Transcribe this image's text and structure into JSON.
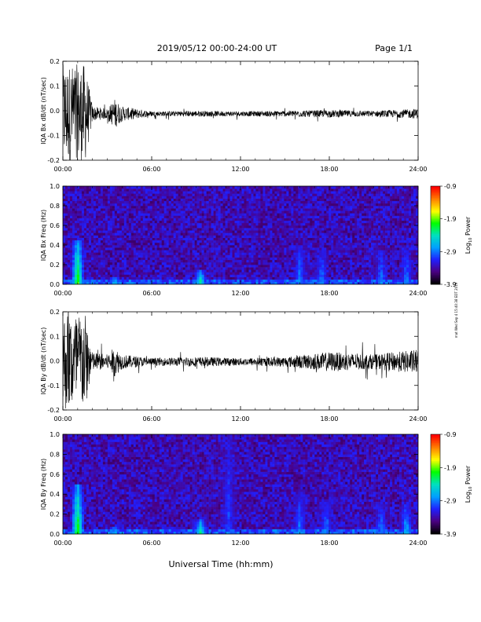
{
  "header": {
    "title": "2019/05/12  00:00-24:00 UT",
    "page": "Page 1/1"
  },
  "footer": {
    "xlabel": "Universal Time (hh:mm)"
  },
  "side_note": "mat Wed Sep 4 15:40:38 EDT 2019",
  "colorbar": {
    "label": "Log",
    "subscript": "10",
    "label_suffix": " Power",
    "range": [
      -3.9,
      -0.9
    ],
    "ticks": [
      "-0.9",
      "-1.9",
      "-2.9",
      "-3.9"
    ],
    "colors": [
      "#000000",
      "#4b0082",
      "#2020ff",
      "#00a0ff",
      "#00e0c0",
      "#00ff00",
      "#ffff00",
      "#ff8000",
      "#ff0000"
    ]
  },
  "chart_data": [
    {
      "type": "line",
      "title": "",
      "ylabel": "IQA Bx dB/dt (nT/sec)",
      "xlabel": "",
      "xlim_hours": [
        0,
        24
      ],
      "ylim": [
        -0.2,
        0.2
      ],
      "x_ticks": [
        "00:00",
        "06:00",
        "12:00",
        "18:00",
        "24:00"
      ],
      "y_ticks": [
        "0.2",
        "0.1",
        "0.0",
        "-0.1",
        "-0.2"
      ],
      "series": [
        {
          "x": [
            0,
            0.5,
            1.0,
            1.5,
            2.0,
            3.0,
            3.5,
            4.0,
            6,
            9,
            12,
            15,
            18,
            21,
            24
          ],
          "amplitude": [
            0.2,
            0.2,
            0.2,
            0.2,
            0.03,
            0.02,
            0.06,
            0.03,
            0.01,
            0.012,
            0.01,
            0.012,
            0.015,
            0.012,
            0.02
          ]
        }
      ]
    },
    {
      "type": "heatmap",
      "title": "",
      "ylabel": "IQA Bx Freq (Hz)",
      "xlim_hours": [
        0,
        24
      ],
      "ylim": [
        0.0,
        1.0
      ],
      "x_ticks": [
        "00:00",
        "06:00",
        "12:00",
        "18:00",
        "24:00"
      ],
      "y_ticks": [
        "1.0",
        "0.8",
        "0.6",
        "0.4",
        "0.2",
        "0.0"
      ],
      "enhancements": [
        {
          "t": 1.0,
          "f_max": 0.45,
          "level": -1.9
        },
        {
          "t": 3.5,
          "f_max": 0.08,
          "level": -2.6
        },
        {
          "t": 9.3,
          "f_max": 0.15,
          "level": -2.3
        },
        {
          "t": 16.0,
          "f_max": 0.4,
          "level": -2.9
        },
        {
          "t": 17.5,
          "f_max": 0.35,
          "level": -2.9
        },
        {
          "t": 21.5,
          "f_max": 0.35,
          "level": -2.9
        },
        {
          "t": 23.2,
          "f_max": 0.35,
          "level": -2.9
        }
      ]
    },
    {
      "type": "line",
      "title": "",
      "ylabel": "IQA By dB/dt (nT/sec)",
      "xlabel": "",
      "xlim_hours": [
        0,
        24
      ],
      "ylim": [
        -0.2,
        0.2
      ],
      "x_ticks": [
        "00:00",
        "06:00",
        "12:00",
        "18:00",
        "24:00"
      ],
      "y_ticks": [
        "0.2",
        "0.1",
        "0.0",
        "-0.1",
        "-0.2"
      ],
      "series": [
        {
          "x": [
            0,
            0.5,
            1.0,
            1.5,
            2.0,
            3.0,
            3.5,
            4.0,
            6,
            9,
            12,
            15,
            18,
            21,
            24
          ],
          "amplitude": [
            0.2,
            0.2,
            0.2,
            0.2,
            0.04,
            0.03,
            0.06,
            0.03,
            0.015,
            0.02,
            0.015,
            0.02,
            0.04,
            0.03,
            0.05
          ]
        }
      ]
    },
    {
      "type": "heatmap",
      "title": "",
      "ylabel": "IQA By Freq (Hz)",
      "xlim_hours": [
        0,
        24
      ],
      "ylim": [
        0.0,
        1.0
      ],
      "x_ticks": [
        "00:00",
        "06:00",
        "12:00",
        "18:00",
        "24:00"
      ],
      "y_ticks": [
        "1.0",
        "0.8",
        "0.6",
        "0.4",
        "0.2",
        "0.0"
      ],
      "enhancements": [
        {
          "t": 1.0,
          "f_max": 0.5,
          "level": -1.9
        },
        {
          "t": 3.5,
          "f_max": 0.08,
          "level": -2.6
        },
        {
          "t": 9.3,
          "f_max": 0.15,
          "level": -2.3
        },
        {
          "t": 11.2,
          "f_max": 1.0,
          "level": -3.1
        },
        {
          "t": 16.0,
          "f_max": 0.4,
          "level": -2.9
        },
        {
          "t": 17.8,
          "f_max": 0.35,
          "level": -2.9
        },
        {
          "t": 21.5,
          "f_max": 0.3,
          "level": -2.9
        },
        {
          "t": 23.2,
          "f_max": 0.3,
          "level": -2.7
        }
      ]
    }
  ]
}
